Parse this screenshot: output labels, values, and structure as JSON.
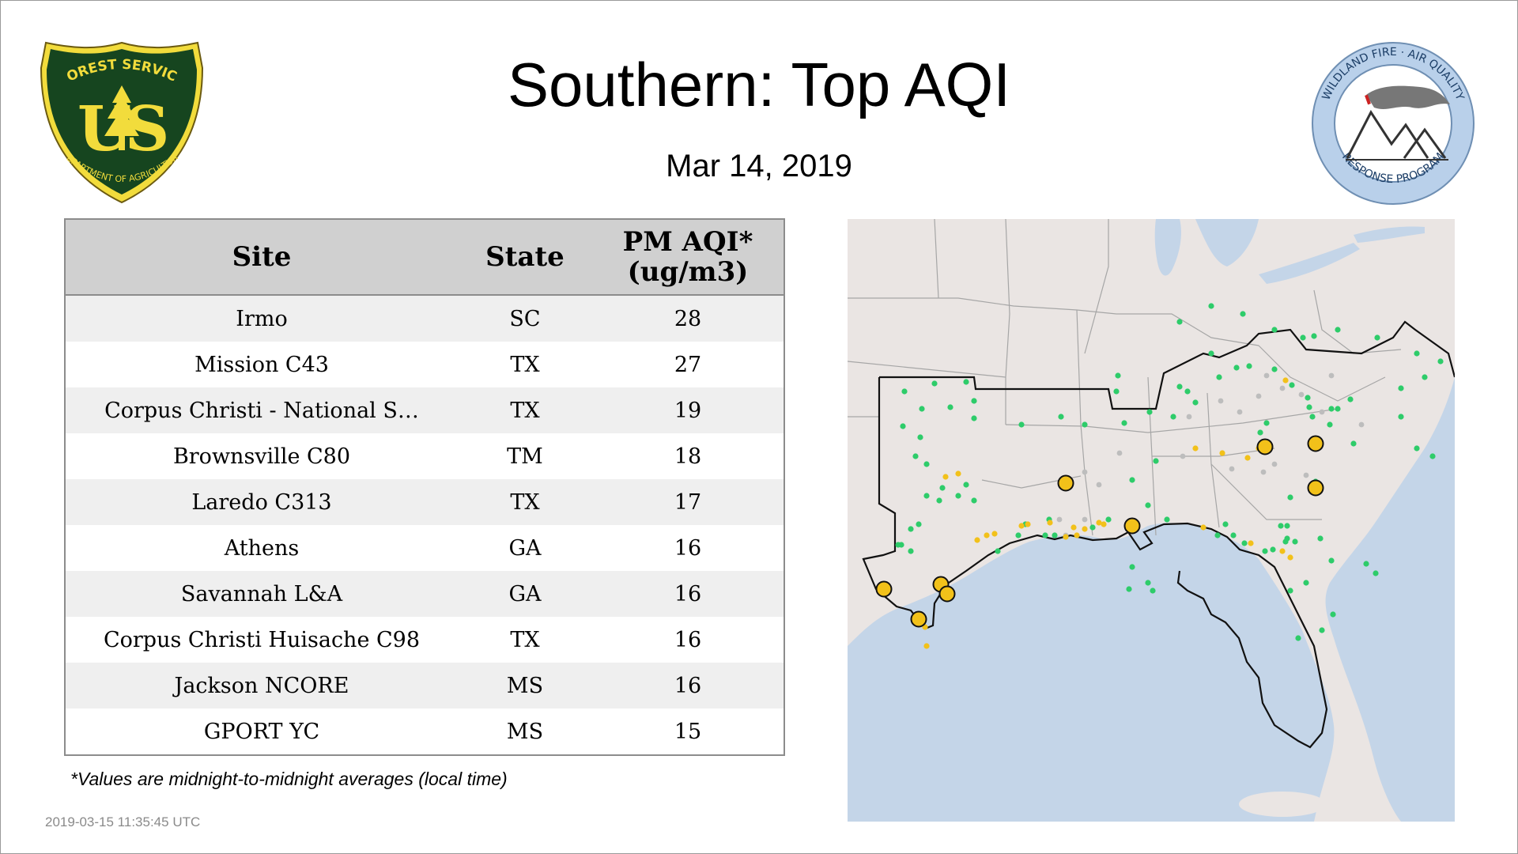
{
  "header": {
    "title": "Southern: Top AQI",
    "date": "Mar 14, 2019"
  },
  "logos": {
    "forest_service": {
      "top_text": "FOREST SERVICE",
      "letters": "U S",
      "bottom_text": "DEPARTMENT OF AGRICULTURE",
      "icon": "pine-tree-icon",
      "colors": {
        "green": "#16451f",
        "gold": "#f2dc3c"
      }
    },
    "wildland_fire": {
      "ring_text_top": "WILDLAND FIRE · AIR QUALITY",
      "ring_text_bottom": "RESPONSE PROGRAM",
      "icon": "mountain-smoke-icon",
      "colors": {
        "ring": "#b9d0ea",
        "smoke": "#777777",
        "flame": "#cc2222"
      }
    }
  },
  "table": {
    "headers": {
      "site": "Site",
      "state": "State",
      "aqi_line1": "PM AQI*",
      "aqi_line2": "(ug/m3)"
    },
    "rows": [
      {
        "site": "Irmo",
        "state": "SC",
        "aqi": "28"
      },
      {
        "site": "Mission C43",
        "state": "TX",
        "aqi": "27"
      },
      {
        "site": "Corpus Christi - National S…",
        "state": "TX",
        "aqi": "19"
      },
      {
        "site": "Brownsville C80",
        "state": "TM",
        "aqi": "18"
      },
      {
        "site": "Laredo C313",
        "state": "TX",
        "aqi": "17"
      },
      {
        "site": "Athens",
        "state": "GA",
        "aqi": "16"
      },
      {
        "site": "Savannah L&A",
        "state": "GA",
        "aqi": "16"
      },
      {
        "site": "Corpus Christi Huisache C98",
        "state": "TX",
        "aqi": "16"
      },
      {
        "site": "Jackson NCORE",
        "state": "MS",
        "aqi": "16"
      },
      {
        "site": "GPORT YC",
        "state": "MS",
        "aqi": "15"
      }
    ]
  },
  "footnote": "*Values are midnight-to-midnight averages (local time)",
  "timestamp": "2019-03-15 11:35:45 UTC",
  "map": {
    "colors": {
      "land": "#eae5e3",
      "water": "#c4d5e8",
      "good": "#2ecc6a",
      "moderate": "#f2c11a",
      "missing": "#bdbdbd",
      "top_site": "#f2c11a"
    }
  }
}
